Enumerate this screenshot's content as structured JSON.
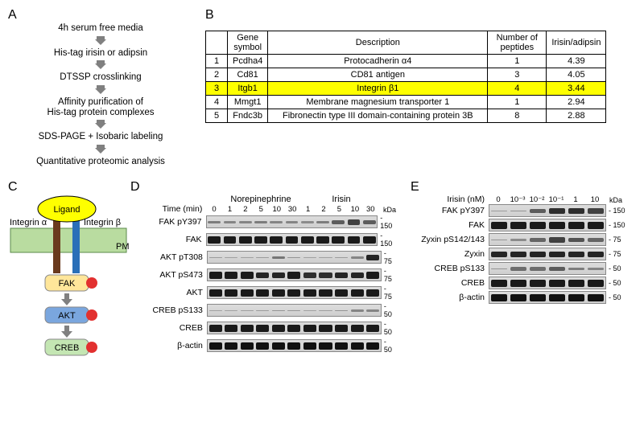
{
  "panelA": {
    "label": "A",
    "steps": [
      "4h serum free media",
      "His-tag irisin or adipsin",
      "DTSSP crosslinking",
      "Affinity purification of\nHis-tag protein complexes",
      "SDS-PAGE + Isobaric labeling",
      "Quantitative proteomic analysis"
    ],
    "arrow_color": "#808080"
  },
  "panelB": {
    "label": "B",
    "columns": [
      "",
      "Gene symbol",
      "Description",
      "Number of peptides",
      "Irisin/adipsin"
    ],
    "rows": [
      {
        "n": "1",
        "sym": "Pcdha4",
        "desc": "Protocadherin α4",
        "pep": "1",
        "ratio": "4.39",
        "hl": false
      },
      {
        "n": "2",
        "sym": "Cd81",
        "desc": "CD81 antigen",
        "pep": "3",
        "ratio": "4.05",
        "hl": false
      },
      {
        "n": "3",
        "sym": "Itgb1",
        "desc": "Integrin β1",
        "pep": "4",
        "ratio": "3.44",
        "hl": true
      },
      {
        "n": "4",
        "sym": "Mmgt1",
        "desc": "Membrane magnesium transporter 1",
        "pep": "1",
        "ratio": "2.94",
        "hl": false
      },
      {
        "n": "5",
        "sym": "Fndc3b",
        "desc": "Fibronectin type III domain-containing protein 3B",
        "pep": "8",
        "ratio": "2.88",
        "hl": false
      }
    ],
    "highlight_color": "#feff00"
  },
  "panelC": {
    "label": "C",
    "ligand_label": "Ligand",
    "ligand_fill": "#feff00",
    "ligand_stroke": "#000000",
    "int_a_label": "Integrin α",
    "int_b_label": "Integrin β",
    "int_a_color": "#6a3a1e",
    "int_b_color": "#2a6fb8",
    "pm_label": "PM",
    "pm_fill": "#b9dca0",
    "fak_label": "FAK",
    "fak_fill": "#ffe69a",
    "akt_label": "AKT",
    "akt_fill": "#7aa6de",
    "creb_label": "CREB",
    "creb_fill": "#c4e6b3",
    "phos_fill": "#e2302f",
    "text_size": 11
  },
  "panelD": {
    "label": "D",
    "row_header": "Time (min)",
    "groups": [
      "Norepinephrine",
      "Irisin"
    ],
    "time_labels": [
      "0",
      "1",
      "2",
      "5",
      "10",
      "30",
      "1",
      "2",
      "5",
      "10",
      "30"
    ],
    "kda_label": "kDa",
    "blots": [
      {
        "name": "FAK pY397",
        "mw": "150",
        "int": [
          0.35,
          0.3,
          0.3,
          0.35,
          0.3,
          0.3,
          0.25,
          0.35,
          0.55,
          0.7,
          0.55
        ]
      },
      {
        "name": "FAK",
        "mw": "150",
        "int": [
          0.9,
          0.9,
          0.9,
          0.9,
          0.9,
          0.9,
          0.9,
          0.9,
          0.9,
          0.9,
          0.9
        ]
      },
      {
        "name": "AKT pT308",
        "mw": "75",
        "int": [
          0.15,
          0.1,
          0.1,
          0.15,
          0.4,
          0.2,
          0.1,
          0.1,
          0.15,
          0.3,
          0.85
        ]
      },
      {
        "name": "AKT pS473",
        "mw": "75",
        "int": [
          0.9,
          0.9,
          0.9,
          0.85,
          0.85,
          0.9,
          0.8,
          0.8,
          0.85,
          0.85,
          0.9
        ]
      },
      {
        "name": "AKT",
        "mw": "75",
        "int": [
          0.9,
          0.9,
          0.9,
          0.9,
          0.9,
          0.9,
          0.9,
          0.9,
          0.9,
          0.9,
          0.9
        ]
      },
      {
        "name": "CREB pS133",
        "mw": "50",
        "int": [
          0.1,
          0.1,
          0.12,
          0.15,
          0.2,
          0.18,
          0.1,
          0.12,
          0.2,
          0.3,
          0.3
        ]
      },
      {
        "name": "CREB",
        "mw": "50",
        "int": [
          0.9,
          0.9,
          0.9,
          0.9,
          0.9,
          0.9,
          0.9,
          0.9,
          0.9,
          0.9,
          0.9
        ]
      },
      {
        "name": "β-actin",
        "mw": "50",
        "int": [
          0.95,
          0.95,
          0.95,
          0.95,
          0.95,
          0.95,
          0.95,
          0.95,
          0.95,
          0.95,
          0.95
        ]
      }
    ],
    "lane_width": 20
  },
  "panelE": {
    "label": "E",
    "row_header": "Irisin (nM)",
    "conc_labels": [
      "0",
      "10⁻³",
      "10⁻²",
      "10⁻¹",
      "1",
      "10"
    ],
    "kda_label": "kDa",
    "blots": [
      {
        "name": "FAK pY397",
        "mw": "150",
        "int": [
          0.15,
          0.2,
          0.55,
          0.8,
          0.8,
          0.7
        ]
      },
      {
        "name": "FAK",
        "mw": "150",
        "int": [
          0.9,
          0.9,
          0.9,
          0.9,
          0.9,
          0.9
        ]
      },
      {
        "name": "Zyxin pS142/143",
        "mw": "75",
        "int": [
          0.2,
          0.25,
          0.5,
          0.7,
          0.6,
          0.5
        ]
      },
      {
        "name": "Zyxin",
        "mw": "75",
        "int": [
          0.85,
          0.85,
          0.85,
          0.85,
          0.85,
          0.85
        ]
      },
      {
        "name": "CREB pS133",
        "mw": "50",
        "int": [
          0.2,
          0.45,
          0.45,
          0.55,
          0.35,
          0.3
        ]
      },
      {
        "name": "CREB",
        "mw": "50",
        "int": [
          0.9,
          0.9,
          0.9,
          0.9,
          0.9,
          0.9
        ]
      },
      {
        "name": "β-actin",
        "mw": "50",
        "int": [
          0.95,
          0.95,
          0.95,
          0.95,
          0.95,
          0.95
        ]
      }
    ],
    "lane_width": 24
  },
  "style": {
    "font_family": "Arial, Helvetica, sans-serif",
    "body_font_size": 11,
    "panel_label_font_size": 16,
    "background": "#ffffff",
    "text_color": "#000000",
    "arrow_glyph": "▼"
  }
}
